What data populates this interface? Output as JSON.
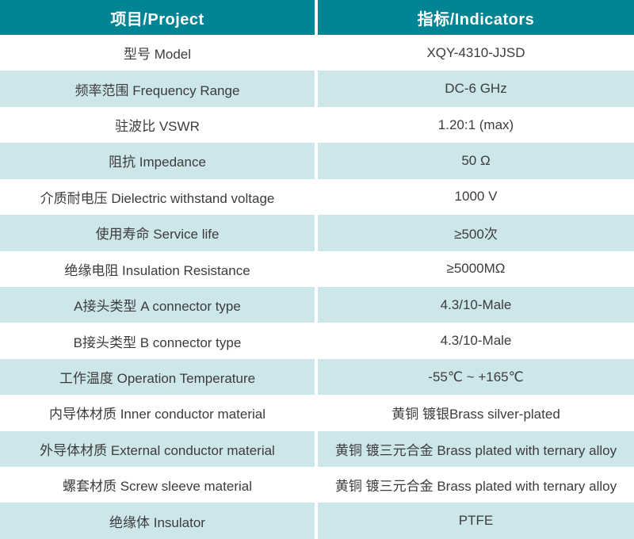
{
  "table": {
    "header": {
      "project": "项目/Project",
      "indicators": "指标/Indicators"
    },
    "rows": [
      {
        "project": "型号 Model",
        "indicator": "XQY-4310-JJSD"
      },
      {
        "project": "频率范围 Frequency Range",
        "indicator": "DC-6 GHz"
      },
      {
        "project": "驻波比 VSWR",
        "indicator": "1.20:1 (max)"
      },
      {
        "project": "阻抗 Impedance",
        "indicator": "50 Ω"
      },
      {
        "project": "介质耐电压 Dielectric withstand voltage",
        "indicator": "1000 V"
      },
      {
        "project": "使用寿命 Service life",
        "indicator": "≥500次"
      },
      {
        "project": "绝缘电阻 Insulation Resistance",
        "indicator": "≥5000MΩ"
      },
      {
        "project": "A接头类型 A connector type",
        "indicator": "4.3/10-Male"
      },
      {
        "project": "B接头类型 B connector type",
        "indicator": "4.3/10-Male"
      },
      {
        "project": "工作温度 Operation Temperature",
        "indicator": "-55℃ ~ +165℃"
      },
      {
        "project": "内导体材质 Inner conductor material",
        "indicator": "黄铜 镀银Brass silver-plated"
      },
      {
        "project": "外导体材质 External conductor material",
        "indicator": "黄铜 镀三元合金 Brass plated with ternary alloy"
      },
      {
        "project": "螺套材质 Screw sleeve material",
        "indicator": "黄铜 镀三元合金 Brass plated with ternary alloy"
      },
      {
        "project": "绝缘体 Insulator",
        "indicator": "PTFE"
      }
    ],
    "colors": {
      "header_bg": "#008594",
      "header_text": "#ffffff",
      "row_bg": "#ffffff",
      "row_alt_bg": "#cde6ea",
      "text": "#3c3c3c",
      "divider": "#ffffff"
    }
  }
}
